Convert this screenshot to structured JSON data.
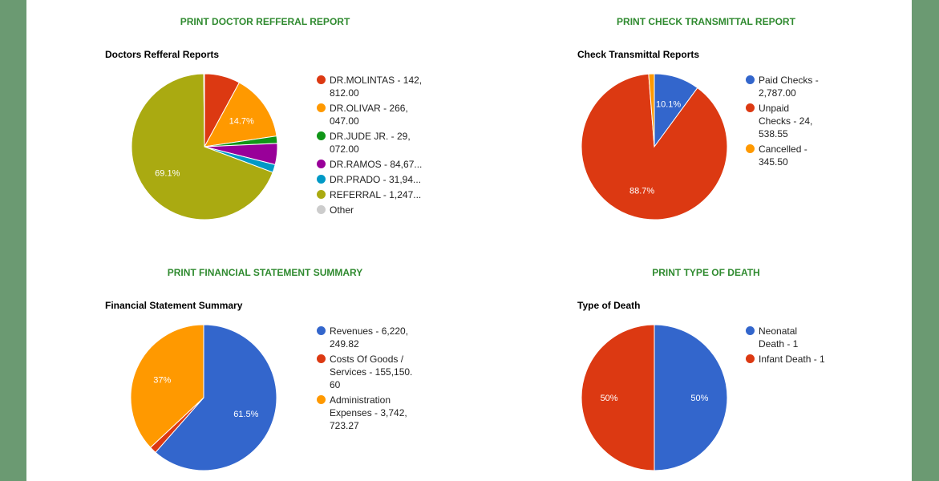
{
  "colors": {
    "background": "#6b9a72",
    "title_green": "#2f8a2f"
  },
  "charts": [
    {
      "button": "PRINT DOCTOR REFFERAL REPORT",
      "chart_title": "Doctors Refferal Reports"
    },
    {
      "button": "PRINT CHECK TRANSMITTAL REPORT",
      "chart_title": "Check Transmittal Reports"
    },
    {
      "button": "PRINT FINANCIAL STATEMENT SUMMARY",
      "chart_title": "Financial Statement Summary"
    },
    {
      "button": "PRINT TYPE OF DEATH",
      "chart_title": "Type of Death"
    }
  ],
  "chart_data": [
    {
      "type": "pie",
      "title": "Doctors Refferal Reports",
      "legend_position": "right",
      "slices": [
        {
          "label": "DR.MOLINTAS - 142,\n812.00",
          "value": 142812.0,
          "color": "#dc3912",
          "pct_label": ""
        },
        {
          "label": "DR.OLIVAR - 266,\n047.00",
          "value": 266047.0,
          "color": "#ff9900",
          "pct_label": "14.7%"
        },
        {
          "label": "DR.JUDE JR. - 29,\n072.00",
          "value": 29072.0,
          "color": "#109618",
          "pct_label": ""
        },
        {
          "label": "DR.RAMOS - 84,67...",
          "value": 84670,
          "color": "#990099",
          "pct_label": ""
        },
        {
          "label": "DR.PRADO - 31,94...",
          "value": 31940,
          "color": "#0099c6",
          "pct_label": ""
        },
        {
          "label": "REFERRAL - 1,247...",
          "value": 1247000,
          "color": "#aaaa11",
          "pct_label": "69.1%"
        },
        {
          "label": "Other",
          "value": 3000,
          "color": "#cccccc",
          "pct_label": ""
        }
      ]
    },
    {
      "type": "pie",
      "title": "Check Transmittal Reports",
      "legend_position": "right",
      "slices": [
        {
          "label": "Paid Checks -\n2,787.00",
          "value": 2787.0,
          "color": "#3366cc",
          "pct_label": "10.1%"
        },
        {
          "label": "Unpaid\nChecks - 24,\n538.55",
          "value": 24538.55,
          "color": "#dc3912",
          "pct_label": "88.7%"
        },
        {
          "label": "Cancelled -\n345.50",
          "value": 345.5,
          "color": "#ff9900",
          "pct_label": ""
        }
      ]
    },
    {
      "type": "pie",
      "title": "Financial Statement Summary",
      "legend_position": "right",
      "slices": [
        {
          "label": "Revenues - 6,220,\n249.82",
          "value": 6220249.82,
          "color": "#3366cc",
          "pct_label": "61.5%"
        },
        {
          "label": "Costs Of Goods /\nServices - 155,150.\n60",
          "value": 155150.6,
          "color": "#dc3912",
          "pct_label": ""
        },
        {
          "label": "Administration\nExpenses - 3,742,\n723.27",
          "value": 3742723.27,
          "color": "#ff9900",
          "pct_label": "37%"
        }
      ]
    },
    {
      "type": "pie",
      "title": "Type of Death",
      "legend_position": "right",
      "slices": [
        {
          "label": "Neonatal\nDeath - 1",
          "value": 1,
          "color": "#3366cc",
          "pct_label": "50%"
        },
        {
          "label": "Infant Death - 1",
          "value": 1,
          "color": "#dc3912",
          "pct_label": "50%"
        }
      ]
    }
  ]
}
